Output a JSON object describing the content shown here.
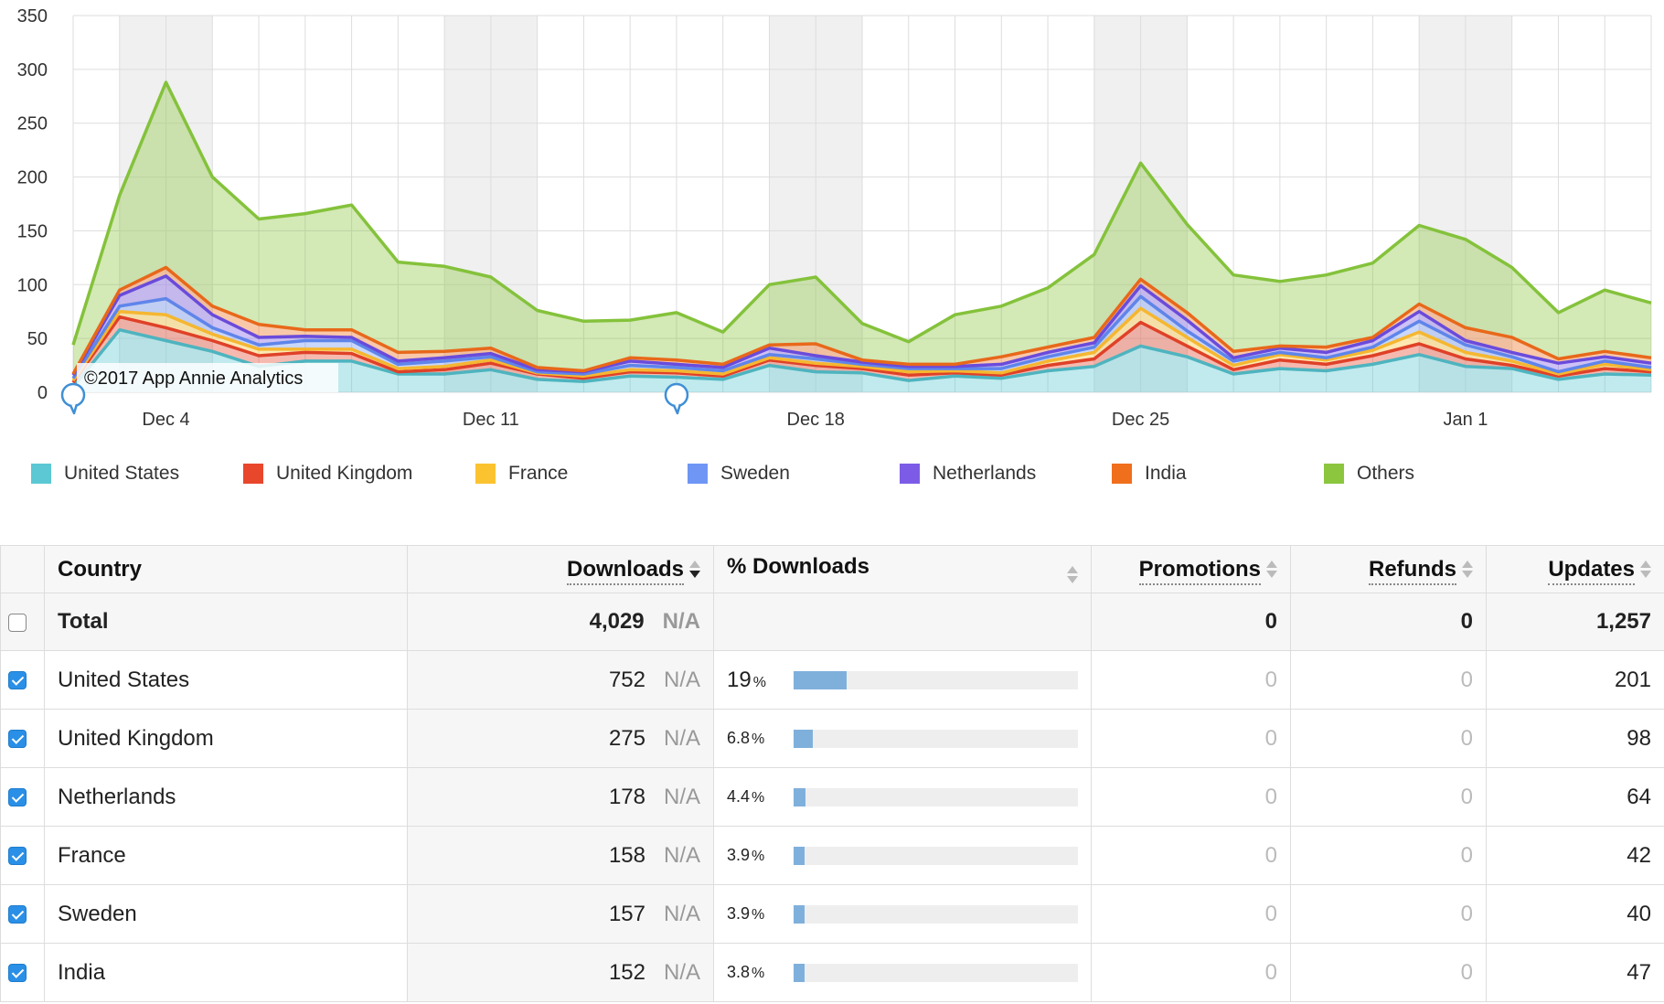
{
  "chart_data": {
    "type": "area",
    "stacked": true,
    "yticks": [
      0,
      50,
      100,
      150,
      200,
      250,
      300,
      350
    ],
    "ylim": [
      0,
      350
    ],
    "xticks": [
      {
        "label": "Dec 4",
        "index": 2
      },
      {
        "label": "Dec 11",
        "index": 9
      },
      {
        "label": "Dec 18",
        "index": 16
      },
      {
        "label": "Dec 25",
        "index": 23
      },
      {
        "label": "Jan 1",
        "index": 30
      }
    ],
    "weekend_bands": [
      [
        1,
        3
      ],
      [
        8,
        10
      ],
      [
        15,
        17
      ],
      [
        22,
        24
      ],
      [
        29,
        31
      ]
    ],
    "credit": "©2017 App Annie Analytics",
    "series": [
      {
        "name": "United States",
        "color": "#5bc8d3",
        "line": "#4eb4bf",
        "values": [
          5,
          58,
          48,
          38,
          24,
          29,
          29,
          17,
          17,
          21,
          12,
          10,
          15,
          14,
          12,
          25,
          19,
          18,
          11,
          15,
          13,
          20,
          24,
          43,
          33,
          17,
          22,
          20,
          26,
          35,
          24,
          22,
          12,
          17,
          16
        ]
      },
      {
        "name": "United Kingdom",
        "color": "#e8472c",
        "line": "#df4128",
        "values": [
          4,
          12,
          12,
          10,
          10,
          8,
          7,
          2,
          4,
          6,
          5,
          3,
          4,
          4,
          3,
          5,
          6,
          4,
          5,
          3,
          3,
          5,
          7,
          22,
          10,
          4,
          8,
          6,
          8,
          10,
          7,
          3,
          3,
          5,
          3
        ]
      },
      {
        "name": "France",
        "color": "#fcc331",
        "line": "#f5b731",
        "values": [
          2,
          5,
          12,
          6,
          6,
          3,
          4,
          3,
          3,
          3,
          1,
          2,
          2,
          2,
          2,
          2,
          2,
          2,
          3,
          2,
          2,
          4,
          6,
          13,
          8,
          4,
          5,
          4,
          5,
          11,
          6,
          4,
          2,
          4,
          2
        ]
      },
      {
        "name": "Sweden",
        "color": "#6f96f5",
        "line": "#5f85ea",
        "values": [
          2,
          5,
          15,
          6,
          4,
          8,
          8,
          4,
          5,
          3,
          1,
          2,
          4,
          3,
          3,
          3,
          4,
          2,
          3,
          2,
          4,
          4,
          5,
          11,
          6,
          4,
          2,
          2,
          3,
          10,
          7,
          4,
          2,
          3,
          2
        ]
      },
      {
        "name": "Netherlands",
        "color": "#7c5ce6",
        "line": "#6a4bdb",
        "values": [
          3,
          10,
          21,
          12,
          7,
          4,
          3,
          3,
          3,
          3,
          2,
          2,
          4,
          3,
          3,
          6,
          3,
          2,
          2,
          2,
          4,
          4,
          4,
          10,
          10,
          3,
          4,
          5,
          6,
          9,
          4,
          4,
          8,
          4,
          4
        ]
      },
      {
        "name": "India",
        "color": "#f06f1c",
        "line": "#e8681a",
        "values": [
          1,
          5,
          8,
          8,
          12,
          6,
          7,
          8,
          6,
          5,
          2,
          1,
          3,
          4,
          3,
          3,
          11,
          2,
          2,
          2,
          7,
          5,
          5,
          6,
          7,
          6,
          2,
          5,
          3,
          7,
          12,
          14,
          4,
          5,
          5
        ]
      },
      {
        "name": "Others",
        "color": "#8cc63f",
        "line": "#84c23b",
        "values": [
          27,
          88,
          172,
          120,
          98,
          108,
          116,
          84,
          79,
          66,
          53,
          46,
          35,
          44,
          30,
          56,
          62,
          34,
          21,
          46,
          47,
          55,
          77,
          108,
          82,
          71,
          60,
          67,
          69,
          73,
          82,
          65,
          43,
          57,
          51
        ]
      }
    ]
  },
  "table": {
    "headers": {
      "country": "Country",
      "downloads": "Downloads",
      "pct_downloads": "% Downloads",
      "promotions": "Promotions",
      "refunds": "Refunds",
      "updates": "Updates"
    },
    "total": {
      "label": "Total",
      "downloads": "4,029",
      "na": "N/A",
      "promotions": "0",
      "refunds": "0",
      "updates": "1,257",
      "checked": false
    },
    "rows": [
      {
        "country": "United States",
        "downloads": "752",
        "na": "N/A",
        "pct": "19",
        "pct_value": 19,
        "promotions": "0",
        "refunds": "0",
        "updates": "201",
        "checked": true
      },
      {
        "country": "United Kingdom",
        "downloads": "275",
        "na": "N/A",
        "pct": "6.8",
        "pct_value": 6.8,
        "promotions": "0",
        "refunds": "0",
        "updates": "98",
        "checked": true
      },
      {
        "country": "Netherlands",
        "downloads": "178",
        "na": "N/A",
        "pct": "4.4",
        "pct_value": 4.4,
        "promotions": "0",
        "refunds": "0",
        "updates": "64",
        "checked": true
      },
      {
        "country": "France",
        "downloads": "158",
        "na": "N/A",
        "pct": "3.9",
        "pct_value": 3.9,
        "promotions": "0",
        "refunds": "0",
        "updates": "42",
        "checked": true
      },
      {
        "country": "Sweden",
        "downloads": "157",
        "na": "N/A",
        "pct": "3.9",
        "pct_value": 3.9,
        "promotions": "0",
        "refunds": "0",
        "updates": "40",
        "checked": true
      },
      {
        "country": "India",
        "downloads": "152",
        "na": "N/A",
        "pct": "3.8",
        "pct_value": 3.8,
        "promotions": "0",
        "refunds": "0",
        "updates": "47",
        "checked": true
      }
    ]
  }
}
